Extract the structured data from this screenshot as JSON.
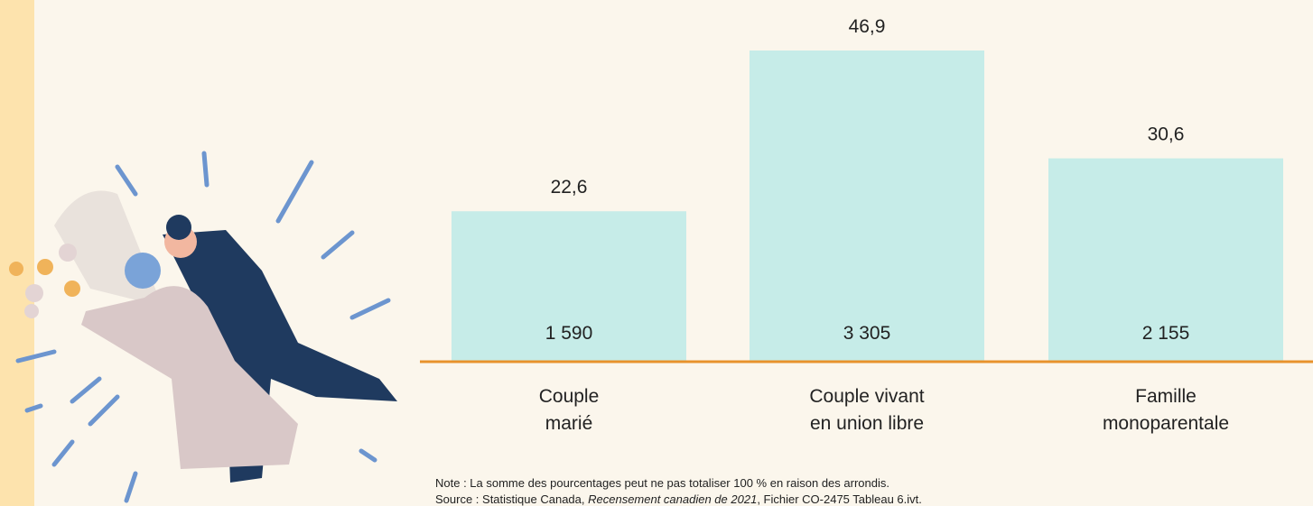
{
  "chart_data": {
    "type": "bar",
    "categories": [
      "Couple\nmarié",
      "Couple vivant\nen union libre",
      "Famille\nmonoparentale"
    ],
    "values": [
      22.6,
      46.9,
      30.6
    ],
    "value_labels": [
      "22,6",
      "46,9",
      "30,6"
    ],
    "counts": [
      1590,
      3305,
      2155
    ],
    "count_labels": [
      "1 590",
      "3 305",
      "2 155"
    ],
    "color": "#c6ece8",
    "baseline_color": "#e8922c",
    "note": "Note : La somme des pourcentages peut ne pas totaliser 100 % en raison des arrondis.",
    "source": [
      "Source : Statistique Canada, ",
      "Recensement canadien de 2021",
      ", Fichier CO-2475 Tableau 6.ivt."
    ]
  }
}
